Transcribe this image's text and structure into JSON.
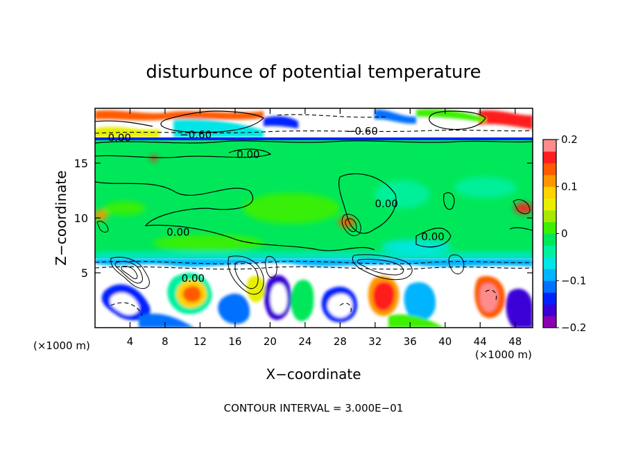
{
  "chart_data": {
    "type": "heatmap",
    "title": "disturbunce of potential temperature",
    "xlabel": "X−coordinate",
    "ylabel": "Z−coordinate",
    "x_unit_left": "(×1000 m)",
    "x_unit_right": "(×1000 m)",
    "xlim": [
      0,
      50
    ],
    "ylim": [
      0,
      20
    ],
    "x_ticks": [
      "4",
      "8",
      "12",
      "16",
      "20",
      "24",
      "28",
      "32",
      "36",
      "40",
      "44",
      "48"
    ],
    "y_ticks": [
      "5",
      "10",
      "15"
    ],
    "colorbar": {
      "range": [
        -0.2,
        0.2
      ],
      "tick_labels": [
        "0.2",
        "0.1",
        "0",
        "−0.1",
        "−0.2"
      ],
      "colors": [
        "#8b00b0",
        "#3a00d6",
        "#0022ff",
        "#0070ff",
        "#00b4ff",
        "#00e6e6",
        "#00f0a0",
        "#00e85a",
        "#3cf000",
        "#a8e800",
        "#e6f000",
        "#ffd200",
        "#ff9600",
        "#ff5a00",
        "#ff1e1e",
        "#ff8c8c"
      ]
    },
    "contour_labels": [
      {
        "text": "0.00",
        "x": 2.8,
        "y": 17.3
      },
      {
        "text": "−0.60",
        "x": 11.5,
        "y": 17.6
      },
      {
        "text": "−0.60",
        "x": 30.5,
        "y": 17.9
      },
      {
        "text": "0.00",
        "x": 17.5,
        "y": 15.8
      },
      {
        "text": "0.00",
        "x": 9.5,
        "y": 8.7
      },
      {
        "text": "0.00",
        "x": 33.3,
        "y": 11.3
      },
      {
        "text": "0.00",
        "x": 38.6,
        "y": 8.3
      },
      {
        "text": "0.00",
        "x": 11.2,
        "y": 4.5
      }
    ],
    "footer": "CONTOUR INTERVAL = 3.000E−01"
  }
}
